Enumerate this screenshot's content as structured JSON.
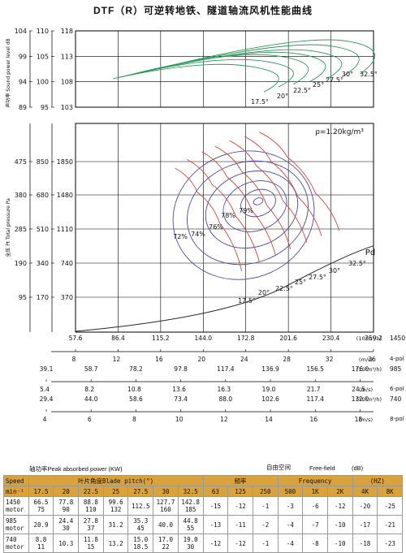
{
  "title": "DTF（R）可逆转地铁、隧道轴流风机性能曲线",
  "sound_chart": {
    "ylabel": "声功率 Sound power level dB",
    "yticks_a": [
      "104",
      "99",
      "94",
      "89"
    ],
    "yticks_b": [
      "110",
      "105",
      "100",
      "95"
    ],
    "yticks_c": [
      "118",
      "113",
      "108",
      "103"
    ],
    "angle_labels": [
      "17.5°",
      "20°",
      "22.5°",
      "25°",
      "27.5°",
      "30°",
      "32.5°"
    ]
  },
  "pressure_chart": {
    "ylabel": "全压 Pt Total pressure Pa",
    "density": "ρ=1.20kg/m³",
    "pd_label": "Pd",
    "yticks_a": [
      "475",
      "380",
      "285",
      "190",
      "95"
    ],
    "yticks_b": [
      "850",
      "680",
      "510",
      "340",
      "170"
    ],
    "yticks_c": [
      "1850",
      "1480",
      "1110",
      "740",
      "370"
    ],
    "efficiency_labels": [
      "79%",
      "78%",
      "76%",
      "74%",
      "72%"
    ],
    "angle_labels": [
      "17.5°",
      "20°",
      "22.5°",
      "25°",
      "27.5°",
      "30°",
      "32.5°"
    ]
  },
  "chart_data": {
    "type": "line",
    "x_axes": [
      {
        "speed": "1450",
        "unit_flow": "(10⁴m³/h)",
        "flow": [
          "57.6",
          "86.4",
          "115.2",
          "144.0",
          "172.8",
          "201.6",
          "230.4",
          "259.2"
        ],
        "unit_vel": "(m/s)",
        "vel": [
          "8",
          "12",
          "16",
          "20",
          "24",
          "28",
          "32",
          "36"
        ],
        "vel_suffix": "4-pol"
      },
      {
        "speed": "985",
        "unit_flow": "(10⁴m³/h)",
        "flow": [
          "39.1",
          "58.7",
          "78.2",
          "97.8",
          "117.4",
          "136.9",
          "156.5",
          "176.0"
        ],
        "unit_vel": "(m/s)",
        "vel": [
          "5.4",
          "8.2",
          "10.8",
          "13.6",
          "16.3",
          "19.0",
          "21.7",
          "24.5"
        ],
        "vel_suffix": "6-pol"
      },
      {
        "speed": "740",
        "unit_flow": "(10⁴m³/h)",
        "flow": [
          "29.4",
          "44.0",
          "58.6",
          "73.4",
          "88.0",
          "102.6",
          "117.4",
          "132.0"
        ],
        "unit_vel": "(m/s)",
        "vel": [
          "4",
          "6",
          "8",
          "10",
          "12",
          "14",
          "16",
          "18"
        ],
        "vel_suffix": "8-pol"
      }
    ],
    "pressure_series": [
      {
        "name": "17.5°",
        "x": [
          125,
          140,
          155,
          170
        ],
        "y": [
          1500,
          1280,
          1000,
          560
        ]
      },
      {
        "name": "20°",
        "x": [
          133,
          150,
          166,
          182
        ],
        "y": [
          1580,
          1350,
          1060,
          640
        ]
      },
      {
        "name": "22.5°",
        "x": [
          143,
          160,
          177,
          193
        ],
        "y": [
          1650,
          1420,
          1110,
          700
        ]
      },
      {
        "name": "25°",
        "x": [
          152,
          170,
          187,
          203
        ],
        "y": [
          1700,
          1470,
          1160,
          760
        ]
      },
      {
        "name": "27.5°",
        "x": [
          162,
          180,
          198,
          214
        ],
        "y": [
          1750,
          1520,
          1200,
          820
        ]
      },
      {
        "name": "30°",
        "x": [
          172,
          190,
          208,
          224
        ],
        "y": [
          1790,
          1560,
          1240,
          880
        ]
      },
      {
        "name": "32.5°",
        "x": [
          182,
          201,
          220,
          236
        ],
        "y": [
          1830,
          1600,
          1270,
          930
        ]
      }
    ],
    "sound_series": [
      {
        "name": "17.5°",
        "x": [
          140,
          165,
          185
        ],
        "y": [
          109,
          111,
          106
        ]
      },
      {
        "name": "20°",
        "x": [
          150,
          175,
          195
        ],
        "y": [
          110,
          112,
          107
        ]
      },
      {
        "name": "22.5°",
        "x": [
          160,
          185,
          205
        ],
        "y": [
          110.5,
          113,
          107.5
        ]
      },
      {
        "name": "25°",
        "x": [
          172,
          197,
          216
        ],
        "y": [
          111,
          113.5,
          108
        ]
      },
      {
        "name": "27.5°",
        "x": [
          182,
          208,
          227
        ],
        "y": [
          111.5,
          114,
          108.5
        ]
      },
      {
        "name": "30°",
        "x": [
          193,
          220,
          238
        ],
        "y": [
          112,
          115,
          109
        ]
      },
      {
        "name": "32.5°",
        "x": [
          203,
          230,
          250
        ],
        "y": [
          112.5,
          116,
          109.5
        ]
      }
    ],
    "efficiency_centre": {
      "x": 195,
      "y": 1470,
      "value": "79%"
    },
    "pd_curve": {
      "x": [
        57.6,
        144,
        200,
        259.2
      ],
      "y": [
        0,
        180,
        420,
        760
      ]
    }
  },
  "absorbed_label": "轴功率Peak absorbed power (KW)",
  "free_field": "自由空间",
  "free_field_en": "Free-field",
  "db_unit": "(dB)",
  "table": {
    "head1": [
      "Speed",
      "叶片角度Blade pitch(°)",
      "频率",
      "Frequency",
      "(HZ)"
    ],
    "head2": [
      "min⁻¹",
      "17.5",
      "20",
      "22.5",
      "25",
      "27.5",
      "30",
      "32.5",
      "63",
      "125",
      "250",
      "500",
      "1K",
      "2K",
      "4K",
      "8K"
    ],
    "rows": [
      [
        "1450\nmotor",
        "66.5\n75",
        "77.8\n90",
        "88.8\n110",
        "99.6\n132",
        "112.5",
        "127.7\n160",
        "142.8\n185",
        "-15",
        "-12",
        "-1",
        "-3",
        "-6",
        "-12",
        "-20",
        "-25"
      ],
      [
        "985\nmotor",
        "20.9",
        "24.4\n30",
        "27.8\n37",
        "31.2",
        "35.3\n45",
        "40.0",
        "44.8\n55",
        "-13",
        "-11",
        "-2",
        "-4",
        "-7",
        "-10",
        "-17",
        "-21"
      ],
      [
        "740\nmotor",
        "8.8\n11",
        "10.3",
        "11.8\n15",
        "13.2",
        "15.0\n18.5",
        "17.0\n22",
        "19.0\n30",
        "-12",
        "-12",
        "-1",
        "-4",
        "-8",
        "-10",
        "-18",
        "-23"
      ]
    ]
  }
}
